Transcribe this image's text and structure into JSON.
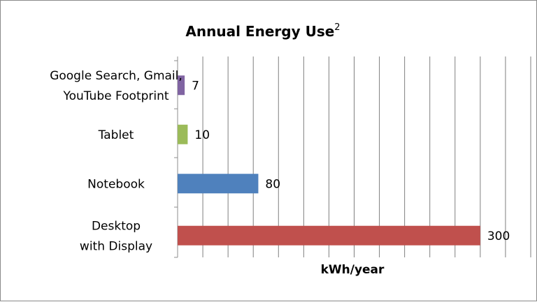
{
  "chart_data": {
    "type": "bar",
    "orientation": "horizontal",
    "title": "Annual Energy Use",
    "title_superscript": "2",
    "xlabel": "kWh/year",
    "ylabel": "",
    "categories": [
      [
        "Google Search, Gmail,",
        "YouTube Footprint"
      ],
      [
        "Tablet"
      ],
      [
        "Notebook"
      ],
      [
        "Desktop",
        "with Display"
      ]
    ],
    "values": [
      7,
      10,
      80,
      300
    ],
    "colors": [
      "#8064a2",
      "#9bbb59",
      "#4f81bd",
      "#c0504d"
    ],
    "xlim": [
      0,
      350
    ],
    "grid_step": 25,
    "grid": true,
    "legend": "none"
  }
}
